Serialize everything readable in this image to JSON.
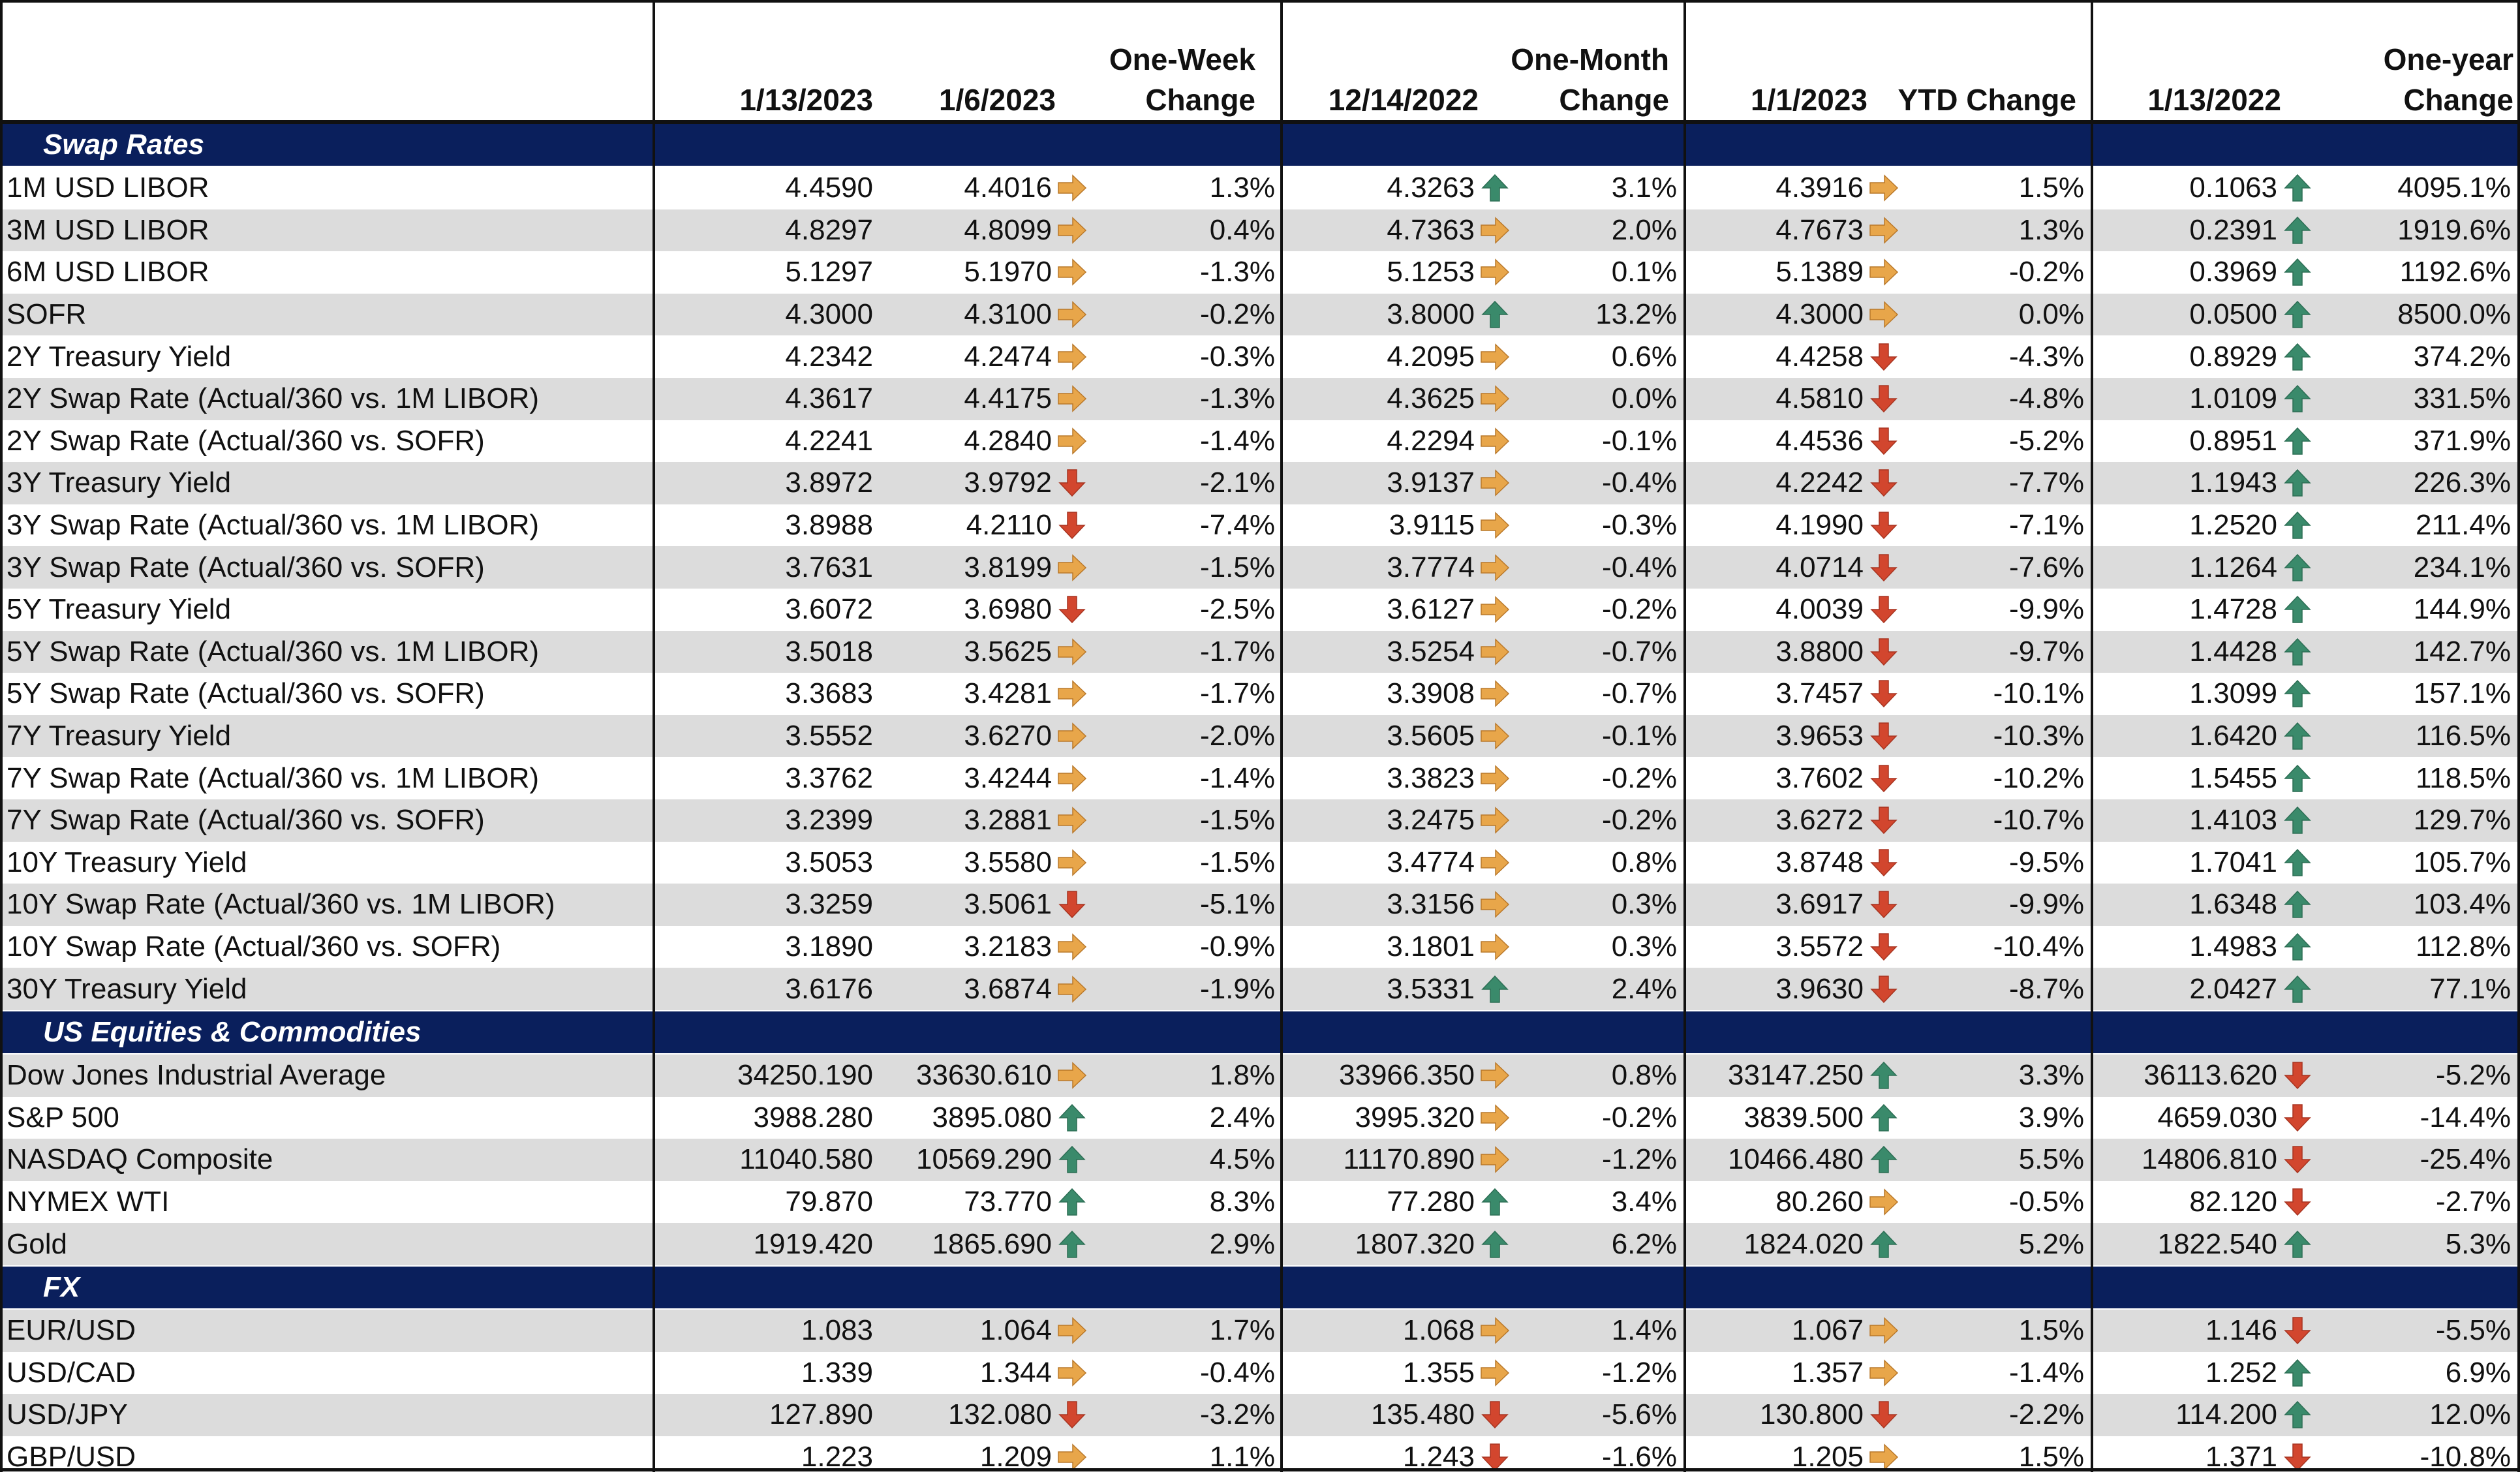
{
  "header": {
    "col_1": "1/13/2023",
    "col_2": "1/6/2023",
    "col_3_line1": "One-Week",
    "col_3_line2": "Change",
    "col_4": "12/14/2022",
    "col_5_line1": "One-Month",
    "col_5_line2": "Change",
    "col_6": "1/1/2023",
    "col_7": "YTD Change",
    "col_8": "1/13/2022",
    "col_9_line1": "One-year",
    "col_9_line2": "Change"
  },
  "colors": {
    "section_bg": "#0a1f5c",
    "shade_row": "#dcdcdc",
    "arrow_up": "#3a8a6b",
    "arrow_down": "#d2462e",
    "arrow_right": "#e8a64a"
  },
  "sections": [
    {
      "title": "Swap Rates",
      "rows": [
        {
          "label": "1M USD LIBOR",
          "v1": "4.4590",
          "v2": "4.4016",
          "a2": "right",
          "c2": "1.3%",
          "v3": "4.3263",
          "a3": "up",
          "c3": "3.1%",
          "v4": "4.3916",
          "a4": "right",
          "c4": "1.5%",
          "v5": "0.1063",
          "a5": "up",
          "c5": "4095.1%"
        },
        {
          "label": "3M USD LIBOR",
          "v1": "4.8297",
          "v2": "4.8099",
          "a2": "right",
          "c2": "0.4%",
          "v3": "4.7363",
          "a3": "right",
          "c3": "2.0%",
          "v4": "4.7673",
          "a4": "right",
          "c4": "1.3%",
          "v5": "0.2391",
          "a5": "up",
          "c5": "1919.6%"
        },
        {
          "label": "6M USD LIBOR",
          "v1": "5.1297",
          "v2": "5.1970",
          "a2": "right",
          "c2": "-1.3%",
          "v3": "5.1253",
          "a3": "right",
          "c3": "0.1%",
          "v4": "5.1389",
          "a4": "right",
          "c4": "-0.2%",
          "v5": "0.3969",
          "a5": "up",
          "c5": "1192.6%"
        },
        {
          "label": "SOFR",
          "v1": "4.3000",
          "v2": "4.3100",
          "a2": "right",
          "c2": "-0.2%",
          "v3": "3.8000",
          "a3": "up",
          "c3": "13.2%",
          "v4": "4.3000",
          "a4": "right",
          "c4": "0.0%",
          "v5": "0.0500",
          "a5": "up",
          "c5": "8500.0%"
        },
        {
          "label": "2Y Treasury Yield",
          "v1": "4.2342",
          "v2": "4.2474",
          "a2": "right",
          "c2": "-0.3%",
          "v3": "4.2095",
          "a3": "right",
          "c3": "0.6%",
          "v4": "4.4258",
          "a4": "down",
          "c4": "-4.3%",
          "v5": "0.8929",
          "a5": "up",
          "c5": "374.2%"
        },
        {
          "label": "2Y Swap Rate (Actual/360 vs. 1M LIBOR)",
          "v1": "4.3617",
          "v2": "4.4175",
          "a2": "right",
          "c2": "-1.3%",
          "v3": "4.3625",
          "a3": "right",
          "c3": "0.0%",
          "v4": "4.5810",
          "a4": "down",
          "c4": "-4.8%",
          "v5": "1.0109",
          "a5": "up",
          "c5": "331.5%"
        },
        {
          "label": "2Y Swap Rate (Actual/360 vs. SOFR)",
          "v1": "4.2241",
          "v2": "4.2840",
          "a2": "right",
          "c2": "-1.4%",
          "v3": "4.2294",
          "a3": "right",
          "c3": "-0.1%",
          "v4": "4.4536",
          "a4": "down",
          "c4": "-5.2%",
          "v5": "0.8951",
          "a5": "up",
          "c5": "371.9%"
        },
        {
          "label": "3Y Treasury Yield",
          "v1": "3.8972",
          "v2": "3.9792",
          "a2": "down",
          "c2": "-2.1%",
          "v3": "3.9137",
          "a3": "right",
          "c3": "-0.4%",
          "v4": "4.2242",
          "a4": "down",
          "c4": "-7.7%",
          "v5": "1.1943",
          "a5": "up",
          "c5": "226.3%"
        },
        {
          "label": "3Y Swap Rate (Actual/360 vs. 1M LIBOR)",
          "v1": "3.8988",
          "v2": "4.2110",
          "a2": "down",
          "c2": "-7.4%",
          "v3": "3.9115",
          "a3": "right",
          "c3": "-0.3%",
          "v4": "4.1990",
          "a4": "down",
          "c4": "-7.1%",
          "v5": "1.2520",
          "a5": "up",
          "c5": "211.4%"
        },
        {
          "label": "3Y Swap Rate (Actual/360 vs. SOFR)",
          "v1": "3.7631",
          "v2": "3.8199",
          "a2": "right",
          "c2": "-1.5%",
          "v3": "3.7774",
          "a3": "right",
          "c3": "-0.4%",
          "v4": "4.0714",
          "a4": "down",
          "c4": "-7.6%",
          "v5": "1.1264",
          "a5": "up",
          "c5": "234.1%"
        },
        {
          "label": "5Y Treasury Yield",
          "v1": "3.6072",
          "v2": "3.6980",
          "a2": "down",
          "c2": "-2.5%",
          "v3": "3.6127",
          "a3": "right",
          "c3": "-0.2%",
          "v4": "4.0039",
          "a4": "down",
          "c4": "-9.9%",
          "v5": "1.4728",
          "a5": "up",
          "c5": "144.9%"
        },
        {
          "label": "5Y Swap Rate (Actual/360 vs. 1M LIBOR)",
          "v1": "3.5018",
          "v2": "3.5625",
          "a2": "right",
          "c2": "-1.7%",
          "v3": "3.5254",
          "a3": "right",
          "c3": "-0.7%",
          "v4": "3.8800",
          "a4": "down",
          "c4": "-9.7%",
          "v5": "1.4428",
          "a5": "up",
          "c5": "142.7%"
        },
        {
          "label": "5Y Swap Rate (Actual/360 vs. SOFR)",
          "v1": "3.3683",
          "v2": "3.4281",
          "a2": "right",
          "c2": "-1.7%",
          "v3": "3.3908",
          "a3": "right",
          "c3": "-0.7%",
          "v4": "3.7457",
          "a4": "down",
          "c4": "-10.1%",
          "v5": "1.3099",
          "a5": "up",
          "c5": "157.1%"
        },
        {
          "label": "7Y Treasury Yield",
          "v1": "3.5552",
          "v2": "3.6270",
          "a2": "right",
          "c2": "-2.0%",
          "v3": "3.5605",
          "a3": "right",
          "c3": "-0.1%",
          "v4": "3.9653",
          "a4": "down",
          "c4": "-10.3%",
          "v5": "1.6420",
          "a5": "up",
          "c5": "116.5%"
        },
        {
          "label": "7Y Swap Rate (Actual/360 vs. 1M LIBOR)",
          "v1": "3.3762",
          "v2": "3.4244",
          "a2": "right",
          "c2": "-1.4%",
          "v3": "3.3823",
          "a3": "right",
          "c3": "-0.2%",
          "v4": "3.7602",
          "a4": "down",
          "c4": "-10.2%",
          "v5": "1.5455",
          "a5": "up",
          "c5": "118.5%"
        },
        {
          "label": "7Y Swap Rate (Actual/360 vs. SOFR)",
          "v1": "3.2399",
          "v2": "3.2881",
          "a2": "right",
          "c2": "-1.5%",
          "v3": "3.2475",
          "a3": "right",
          "c3": "-0.2%",
          "v4": "3.6272",
          "a4": "down",
          "c4": "-10.7%",
          "v5": "1.4103",
          "a5": "up",
          "c5": "129.7%"
        },
        {
          "label": "10Y Treasury Yield",
          "v1": "3.5053",
          "v2": "3.5580",
          "a2": "right",
          "c2": "-1.5%",
          "v3": "3.4774",
          "a3": "right",
          "c3": "0.8%",
          "v4": "3.8748",
          "a4": "down",
          "c4": "-9.5%",
          "v5": "1.7041",
          "a5": "up",
          "c5": "105.7%"
        },
        {
          "label": "10Y Swap Rate (Actual/360 vs. 1M LIBOR)",
          "v1": "3.3259",
          "v2": "3.5061",
          "a2": "down",
          "c2": "-5.1%",
          "v3": "3.3156",
          "a3": "right",
          "c3": "0.3%",
          "v4": "3.6917",
          "a4": "down",
          "c4": "-9.9%",
          "v5": "1.6348",
          "a5": "up",
          "c5": "103.4%"
        },
        {
          "label": "10Y Swap Rate (Actual/360 vs. SOFR)",
          "v1": "3.1890",
          "v2": "3.2183",
          "a2": "right",
          "c2": "-0.9%",
          "v3": "3.1801",
          "a3": "right",
          "c3": "0.3%",
          "v4": "3.5572",
          "a4": "down",
          "c4": "-10.4%",
          "v5": "1.4983",
          "a5": "up",
          "c5": "112.8%"
        },
        {
          "label": "30Y Treasury Yield",
          "v1": "3.6176",
          "v2": "3.6874",
          "a2": "right",
          "c2": "-1.9%",
          "v3": "3.5331",
          "a3": "up",
          "c3": "2.4%",
          "v4": "3.9630",
          "a4": "down",
          "c4": "-8.7%",
          "v5": "2.0427",
          "a5": "up",
          "c5": "77.1%"
        }
      ]
    },
    {
      "title": "US Equities & Commodities",
      "rows": [
        {
          "label": "Dow Jones Industrial Average",
          "v1": "34250.190",
          "v2": "33630.610",
          "a2": "right",
          "c2": "1.8%",
          "v3": "33966.350",
          "a3": "right",
          "c3": "0.8%",
          "v4": "33147.250",
          "a4": "up",
          "c4": "3.3%",
          "v5": "36113.620",
          "a5": "down",
          "c5": "-5.2%"
        },
        {
          "label": "S&P 500",
          "v1": "3988.280",
          "v2": "3895.080",
          "a2": "up",
          "c2": "2.4%",
          "v3": "3995.320",
          "a3": "right",
          "c3": "-0.2%",
          "v4": "3839.500",
          "a4": "up",
          "c4": "3.9%",
          "v5": "4659.030",
          "a5": "down",
          "c5": "-14.4%"
        },
        {
          "label": "NASDAQ Composite",
          "v1": "11040.580",
          "v2": "10569.290",
          "a2": "up",
          "c2": "4.5%",
          "v3": "11170.890",
          "a3": "right",
          "c3": "-1.2%",
          "v4": "10466.480",
          "a4": "up",
          "c4": "5.5%",
          "v5": "14806.810",
          "a5": "down",
          "c5": "-25.4%"
        },
        {
          "label": "NYMEX WTI",
          "v1": "79.870",
          "v2": "73.770",
          "a2": "up",
          "c2": "8.3%",
          "v3": "77.280",
          "a3": "up",
          "c3": "3.4%",
          "v4": "80.260",
          "a4": "right",
          "c4": "-0.5%",
          "v5": "82.120",
          "a5": "down",
          "c5": "-2.7%"
        },
        {
          "label": "Gold",
          "v1": "1919.420",
          "v2": "1865.690",
          "a2": "up",
          "c2": "2.9%",
          "v3": "1807.320",
          "a3": "up",
          "c3": "6.2%",
          "v4": "1824.020",
          "a4": "up",
          "c4": "5.2%",
          "v5": "1822.540",
          "a5": "up",
          "c5": "5.3%"
        }
      ]
    },
    {
      "title": "FX",
      "rows": [
        {
          "label": "EUR/USD",
          "v1": "1.083",
          "v2": "1.064",
          "a2": "right",
          "c2": "1.7%",
          "v3": "1.068",
          "a3": "right",
          "c3": "1.4%",
          "v4": "1.067",
          "a4": "right",
          "c4": "1.5%",
          "v5": "1.146",
          "a5": "down",
          "c5": "-5.5%"
        },
        {
          "label": "USD/CAD",
          "v1": "1.339",
          "v2": "1.344",
          "a2": "right",
          "c2": "-0.4%",
          "v3": "1.355",
          "a3": "right",
          "c3": "-1.2%",
          "v4": "1.357",
          "a4": "right",
          "c4": "-1.4%",
          "v5": "1.252",
          "a5": "up",
          "c5": "6.9%"
        },
        {
          "label": "USD/JPY",
          "v1": "127.890",
          "v2": "132.080",
          "a2": "down",
          "c2": "-3.2%",
          "v3": "135.480",
          "a3": "down",
          "c3": "-5.6%",
          "v4": "130.800",
          "a4": "down",
          "c4": "-2.2%",
          "v5": "114.200",
          "a5": "up",
          "c5": "12.0%"
        },
        {
          "label": "GBP/USD",
          "v1": "1.223",
          "v2": "1.209",
          "a2": "right",
          "c2": "1.1%",
          "v3": "1.243",
          "a3": "down",
          "c3": "-1.6%",
          "v4": "1.205",
          "a4": "right",
          "c4": "1.5%",
          "v5": "1.371",
          "a5": "down",
          "c5": "-10.8%"
        }
      ]
    }
  ]
}
